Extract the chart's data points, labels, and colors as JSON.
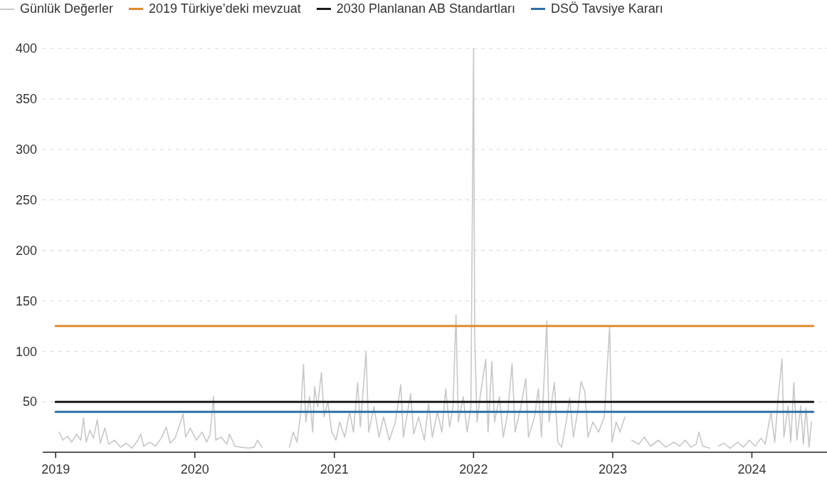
{
  "chart_data": {
    "type": "line",
    "legend": "top",
    "grid": "y",
    "line_style": "solid",
    "xlim": [
      "2018-11-28",
      "2024-07-16"
    ],
    "xticks": [
      "2019",
      "2020",
      "2021",
      "2022",
      "2023",
      "2024"
    ],
    "ylim": [
      0,
      400
    ],
    "yticks": [
      50,
      100,
      150,
      200,
      250,
      300,
      350,
      400
    ],
    "series": [
      {
        "name": "Günlük Değerler",
        "color": "#c8c8c8",
        "x": [
          "2019-01-10",
          "2019-01-20",
          "2019-02-01",
          "2019-02-12",
          "2019-02-25",
          "2019-03-08",
          "2019-03-15",
          "2019-03-22",
          "2019-04-01",
          "2019-04-10",
          "2019-04-20",
          "2019-04-28",
          "2019-05-10",
          "2019-05-20",
          "2019-06-05",
          "2019-06-20",
          "2019-07-05",
          "2019-07-20",
          "2019-08-05",
          "2019-08-12",
          "2019-08-20",
          "2019-09-05",
          "2019-09-20",
          "2019-10-05",
          "2019-10-18",
          "2019-10-28",
          "2019-11-10",
          "2019-11-22",
          "2019-12-01",
          "2019-12-08",
          "2019-12-20",
          "2020-01-05",
          "2020-01-20",
          "2020-02-01",
          "2020-02-10",
          "2020-02-19",
          "2020-02-25",
          "2020-03-10",
          "2020-03-25",
          "2020-04-01",
          "2020-04-15",
          "2020-05-01",
          "2020-05-20",
          "2020-06-05",
          "2020-06-13",
          "2020-06-25",
          "2020-07-01",
          "2020-09-05",
          "2020-09-15",
          "2020-09-25",
          "2020-10-05",
          "2020-10-12",
          "2020-10-18",
          "2020-10-28",
          "2020-11-05",
          "2020-11-10",
          "2020-11-18",
          "2020-11-28",
          "2020-12-05",
          "2020-12-15",
          "2020-12-25",
          "2021-01-05",
          "2021-01-15",
          "2021-01-28",
          "2021-02-10",
          "2021-02-20",
          "2021-03-03",
          "2021-03-10",
          "2021-03-25",
          "2021-04-01",
          "2021-04-15",
          "2021-04-28",
          "2021-05-10",
          "2021-05-25",
          "2021-06-10",
          "2021-06-24",
          "2021-07-01",
          "2021-07-20",
          "2021-07-28",
          "2021-08-10",
          "2021-08-25",
          "2021-09-05",
          "2021-09-15",
          "2021-09-28",
          "2021-10-10",
          "2021-10-20",
          "2021-10-30",
          "2021-11-08",
          "2021-11-16",
          "2021-11-22",
          "2021-12-05",
          "2021-12-15",
          "2021-12-25",
          "2022-01-01",
          "2022-01-04",
          "2022-01-10",
          "2022-01-20",
          "2022-02-02",
          "2022-02-08",
          "2022-02-18",
          "2022-02-25",
          "2022-03-10",
          "2022-03-20",
          "2022-04-01",
          "2022-04-12",
          "2022-04-20",
          "2022-05-05",
          "2022-05-18",
          "2022-05-25",
          "2022-06-10",
          "2022-06-20",
          "2022-06-28",
          "2022-07-12",
          "2022-07-18",
          "2022-08-01",
          "2022-08-10",
          "2022-08-20",
          "2022-09-01",
          "2022-09-10",
          "2022-09-20",
          "2022-10-01",
          "2022-10-10",
          "2022-10-20",
          "2022-10-28",
          "2022-11-10",
          "2022-11-25",
          "2022-12-10",
          "2022-12-24",
          "2022-12-30",
          "2023-01-10",
          "2023-01-20",
          "2023-02-02",
          "2023-02-05",
          "2023-02-20",
          "2023-03-10",
          "2023-03-25",
          "2023-04-10",
          "2023-05-01",
          "2023-05-20",
          "2023-06-10",
          "2023-06-25",
          "2023-07-10",
          "2023-07-25",
          "2023-08-08",
          "2023-08-15",
          "2023-08-25",
          "2023-09-13",
          "2023-09-25",
          "2023-10-05",
          "2023-10-20",
          "2023-11-05",
          "2023-11-25",
          "2023-12-10",
          "2023-12-25",
          "2024-01-10",
          "2024-01-25",
          "2024-02-05",
          "2024-02-20",
          "2024-03-01",
          "2024-03-10",
          "2024-03-20",
          "2024-03-25",
          "2024-04-05",
          "2024-04-12",
          "2024-04-20",
          "2024-04-28",
          "2024-05-08",
          "2024-05-15",
          "2024-05-22",
          "2024-05-30",
          "2024-06-05"
        ],
        "values": [
          20,
          12,
          16,
          10,
          18,
          12,
          34,
          10,
          22,
          14,
          32,
          9,
          24,
          8,
          12,
          5,
          9,
          4,
          12,
          18,
          6,
          10,
          6,
          14,
          25,
          9,
          14,
          27,
          38,
          15,
          24,
          12,
          20,
          10,
          18,
          55,
          12,
          15,
          8,
          18,
          6,
          5,
          4,
          5,
          12,
          5,
          null,
          5,
          20,
          10,
          40,
          87,
          30,
          55,
          20,
          65,
          45,
          79,
          35,
          50,
          20,
          12,
          30,
          15,
          40,
          20,
          69,
          25,
          99,
          20,
          45,
          15,
          35,
          12,
          30,
          67,
          15,
          58,
          18,
          35,
          12,
          48,
          15,
          40,
          20,
          63,
          25,
          45,
          136,
          30,
          55,
          20,
          45,
          400,
          115,
          30,
          60,
          92,
          20,
          90,
          30,
          55,
          15,
          40,
          88,
          20,
          45,
          73,
          15,
          35,
          63,
          15,
          130,
          30,
          69,
          10,
          5,
          30,
          54,
          15,
          40,
          70,
          60,
          15,
          30,
          20,
          35,
          125,
          10,
          30,
          20,
          35,
          null,
          12,
          8,
          15,
          6,
          12,
          5,
          10,
          6,
          12,
          5,
          8,
          20,
          6,
          4,
          null,
          6,
          9,
          4,
          10,
          5,
          12,
          6,
          14,
          8,
          40,
          10,
          55,
          92,
          15,
          46,
          10,
          69,
          12,
          46,
          8,
          44,
          5,
          30
        ]
      },
      {
        "name": "2019 Türkiye’deki mevzuat",
        "color": "#e08a2e",
        "x": [
          "2019-01-01",
          "2024-06-10"
        ],
        "values": [
          125,
          125
        ]
      },
      {
        "name": "2030 Planlanan AB Standartları",
        "color": "#1a1a1a",
        "x": [
          "2019-01-01",
          "2024-06-10"
        ],
        "values": [
          50,
          50
        ]
      },
      {
        "name": "DSÖ Tavsiye Kararı",
        "color": "#2f6fa8",
        "x": [
          "2019-01-01",
          "2024-06-10"
        ],
        "values": [
          40,
          40
        ]
      }
    ]
  }
}
